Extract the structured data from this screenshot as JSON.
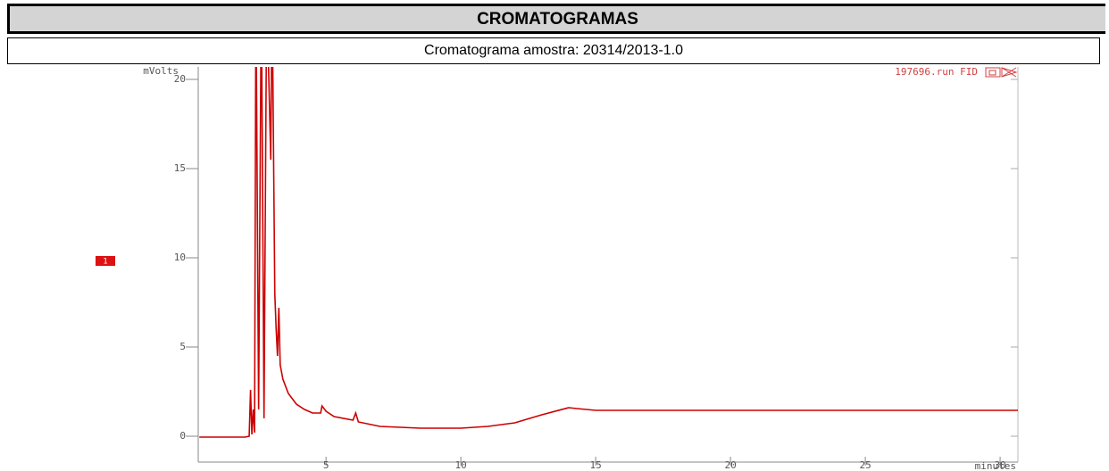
{
  "header": {
    "title": "CROMATOGRAMAS",
    "subtitle": "Cromatograma amostra: 20314/2013-1.0"
  },
  "chart_data": {
    "type": "line",
    "y_label": "mVolts",
    "x_label": "minutes",
    "annotation": "197696.run FID",
    "marker_label": "1",
    "x": [
      0.3,
      2.0,
      2.15,
      2.2,
      2.25,
      2.3,
      2.35,
      2.4,
      2.5,
      2.6,
      2.7,
      2.8,
      2.95,
      3.0,
      3.1,
      3.15,
      3.2,
      3.25,
      3.3,
      3.4,
      3.6,
      3.9,
      4.2,
      4.5,
      4.8,
      4.85,
      5.0,
      5.3,
      6.0,
      6.1,
      6.2,
      7.0,
      8.5,
      10.0,
      11.0,
      12.0,
      13.0,
      14.0,
      14.3,
      15.0,
      18.0,
      20.0,
      25.0,
      30.66
    ],
    "series": [
      {
        "color": "#cc0000",
        "values": [
          -0.05,
          -0.05,
          0.0,
          2.6,
          0.1,
          1.5,
          0.2,
          25,
          1.5,
          25,
          1.0,
          25,
          15.5,
          25,
          8,
          6,
          4.5,
          7.2,
          4,
          3.2,
          2.4,
          1.8,
          1.5,
          1.3,
          1.3,
          1.7,
          1.4,
          1.1,
          0.9,
          1.3,
          0.8,
          0.55,
          0.45,
          0.45,
          0.55,
          0.75,
          1.2,
          1.6,
          1.55,
          1.45,
          1.45,
          1.45,
          1.45,
          1.45
        ]
      }
    ],
    "xlim": [
      0.26,
      30.66
    ],
    "ylim": [
      -1.45,
      20.7
    ],
    "xticks": [
      5,
      10,
      15,
      20,
      25,
      30
    ],
    "yticks": [
      0,
      5,
      10,
      15,
      20
    ]
  }
}
